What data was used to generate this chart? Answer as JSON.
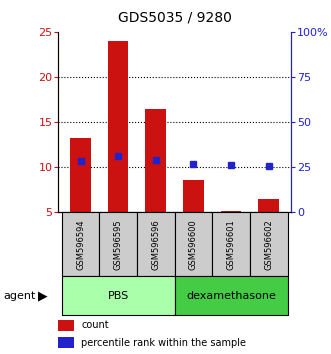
{
  "title": "GDS5035 / 9280",
  "samples": [
    "GSM596594",
    "GSM596595",
    "GSM596596",
    "GSM596600",
    "GSM596601",
    "GSM596602"
  ],
  "counts": [
    13.2,
    24.0,
    16.4,
    8.6,
    5.1,
    6.5
  ],
  "percentiles": [
    28.5,
    31.0,
    29.0,
    27.0,
    26.5,
    25.5
  ],
  "left_ylim": [
    5,
    25
  ],
  "right_ylim": [
    0,
    100
  ],
  "left_yticks": [
    5,
    10,
    15,
    20,
    25
  ],
  "right_yticks": [
    0,
    25,
    50,
    75,
    100
  ],
  "right_yticklabels": [
    "0",
    "25",
    "50",
    "75",
    "100%"
  ],
  "bar_color": "#cc1111",
  "dot_color": "#2222cc",
  "groups": [
    {
      "label": "PBS",
      "indices": [
        0,
        1,
        2
      ],
      "color": "#aaffaa"
    },
    {
      "label": "dexamethasone",
      "indices": [
        3,
        4,
        5
      ],
      "color": "#44cc44"
    }
  ],
  "agent_label": "agent",
  "legend_count_label": "count",
  "legend_pct_label": "percentile rank within the sample",
  "sample_box_color": "#cccccc",
  "bar_bottom": 5,
  "grid_yticks": [
    10,
    15,
    20
  ],
  "bar_width": 0.55
}
